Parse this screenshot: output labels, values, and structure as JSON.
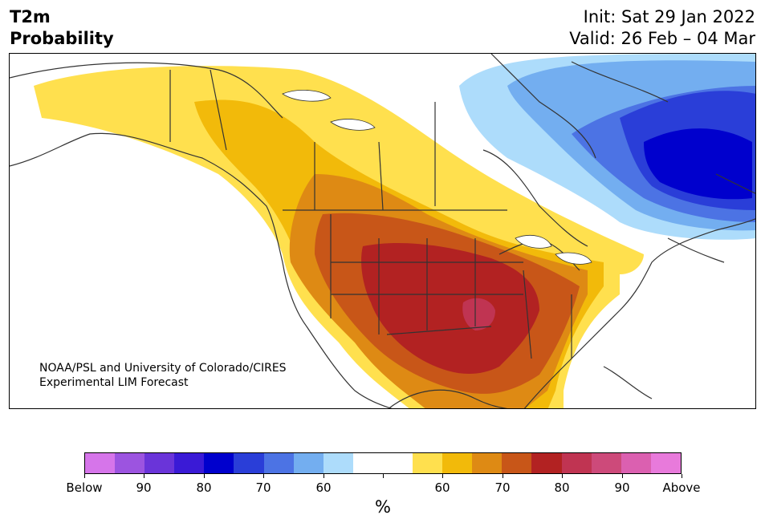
{
  "title": {
    "variable": "T2m",
    "product": "Probability",
    "init": "Init: Sat 29 Jan 2022",
    "valid": "Valid: 26 Feb – 04 Mar"
  },
  "credit": {
    "line1": "NOAA/PSL and University of Colorado/CIRES",
    "line2": "Experimental LIM Forecast"
  },
  "colorbar": {
    "unit": "%",
    "colors": [
      "#d675ea",
      "#9c54e0",
      "#6a34d9",
      "#3a1ad6",
      "#0000cd",
      "#2a3ed8",
      "#4c73e4",
      "#73aef0",
      "#addcfb",
      "#ffffff",
      "#ffffff",
      "#ffe04e",
      "#f2ba0a",
      "#de8a14",
      "#c85618",
      "#b22222",
      "#c03452",
      "#cd4a7a",
      "#db60b0",
      "#e87adb"
    ],
    "ticks": [
      "Below",
      "90",
      "80",
      "70",
      "60",
      "",
      "60",
      "70",
      "80",
      "90",
      "Above"
    ]
  },
  "map": {
    "land_color": "#ffffff",
    "border_color": "#333333",
    "water_color": "#ffffff"
  }
}
